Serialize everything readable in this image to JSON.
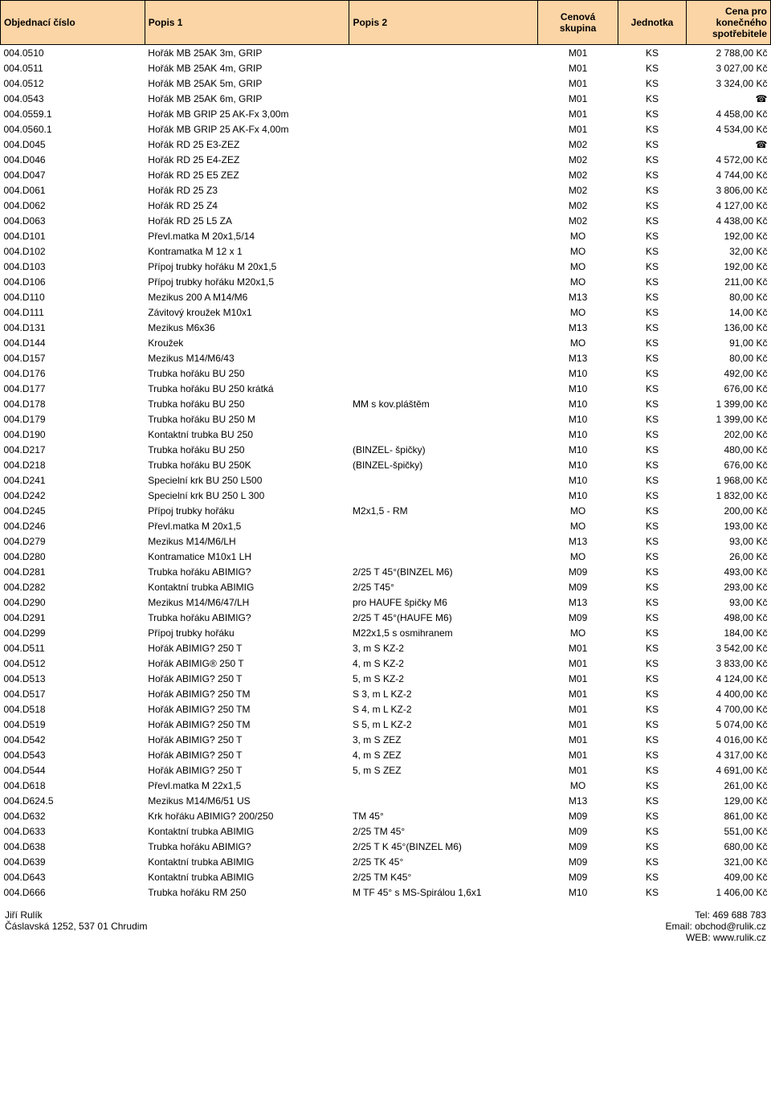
{
  "columns": [
    {
      "label": "Objednací číslo",
      "class": "col-obj",
      "align": "left"
    },
    {
      "label": "Popis 1",
      "class": "col-pop1",
      "align": "left"
    },
    {
      "label": "Popis 2",
      "class": "col-pop2",
      "align": "left"
    },
    {
      "label": "Cenová skupina",
      "class": "col-cenova",
      "align": "center"
    },
    {
      "label": "Jednotka",
      "class": "col-jednotka",
      "align": "center"
    },
    {
      "label": "Cena pro konečného spotřebitele",
      "class": "col-cena",
      "align": "right"
    }
  ],
  "rows": [
    [
      "004.0510",
      "Hořák MB 25AK 3m, GRIP",
      "",
      "M01",
      "KS",
      "2 788,00 Kč"
    ],
    [
      "004.0511",
      "Hořák MB 25AK 4m, GRIP",
      "",
      "M01",
      "KS",
      "3 027,00 Kč"
    ],
    [
      "004.0512",
      "Hořák MB 25AK 5m, GRIP",
      "",
      "M01",
      "KS",
      "3 324,00 Kč"
    ],
    [
      "004.0543",
      "Hořák MB 25AK 6m, GRIP",
      "",
      "M01",
      "KS",
      "☎"
    ],
    [
      "004.0559.1",
      "Hořák MB GRIP 25 AK-Fx 3,00m",
      "",
      "M01",
      "KS",
      "4 458,00 Kč"
    ],
    [
      "004.0560.1",
      "Hořák MB GRIP 25 AK-Fx 4,00m",
      "",
      "M01",
      "KS",
      "4 534,00 Kč"
    ],
    [
      "004.D045",
      "Hořák RD 25 E3-ZEZ",
      "",
      "M02",
      "KS",
      "☎"
    ],
    [
      "004.D046",
      "Hořák RD 25 E4-ZEZ",
      "",
      "M02",
      "KS",
      "4 572,00 Kč"
    ],
    [
      "004.D047",
      "Hořák RD 25 E5 ZEZ",
      "",
      "M02",
      "KS",
      "4 744,00 Kč"
    ],
    [
      "004.D061",
      "Hořák RD 25 Z3",
      "",
      "M02",
      "KS",
      "3 806,00 Kč"
    ],
    [
      "004.D062",
      "Hořák RD 25 Z4",
      "",
      "M02",
      "KS",
      "4 127,00 Kč"
    ],
    [
      "004.D063",
      "Hořák RD 25 L5 ZA",
      "",
      "M02",
      "KS",
      "4 438,00 Kč"
    ],
    [
      "004.D101",
      "Převl.matka M 20x1,5/14",
      "",
      "MO",
      "KS",
      "192,00 Kč"
    ],
    [
      "004.D102",
      "Kontramatka M 12 x 1",
      "",
      "MO",
      "KS",
      "32,00 Kč"
    ],
    [
      "004.D103",
      "Přípoj trubky hořáku M 20x1,5",
      "",
      "MO",
      "KS",
      "192,00 Kč"
    ],
    [
      "004.D106",
      "Přípoj trubky hořáku M20x1,5",
      "",
      "MO",
      "KS",
      "211,00 Kč"
    ],
    [
      "004.D110",
      "Mezikus 200 A M14/M6",
      "",
      "M13",
      "KS",
      "80,00 Kč"
    ],
    [
      "004.D111",
      "Závitový kroužek M10x1",
      "",
      "MO",
      "KS",
      "14,00 Kč"
    ],
    [
      "004.D131",
      "Mezikus M6x36",
      "",
      "M13",
      "KS",
      "136,00 Kč"
    ],
    [
      "004.D144",
      "Kroužek",
      "",
      "MO",
      "KS",
      "91,00 Kč"
    ],
    [
      "004.D157",
      "Mezikus M14/M6/43",
      "",
      "M13",
      "KS",
      "80,00 Kč"
    ],
    [
      "004.D176",
      "Trubka hořáku BU 250",
      "",
      "M10",
      "KS",
      "492,00 Kč"
    ],
    [
      "004.D177",
      "Trubka hořáku BU 250 krátká",
      "",
      "M10",
      "KS",
      "676,00 Kč"
    ],
    [
      "004.D178",
      "Trubka hořáku BU 250",
      "MM s kov.pláštěm",
      "M10",
      "KS",
      "1 399,00 Kč"
    ],
    [
      "004.D179",
      "Trubka hořáku BU 250 M",
      "",
      "M10",
      "KS",
      "1 399,00 Kč"
    ],
    [
      "004.D190",
      "Kontaktní trubka BU 250",
      "",
      "M10",
      "KS",
      "202,00 Kč"
    ],
    [
      "004.D217",
      "Trubka hořáku BU 250",
      "(BINZEL- špičky)",
      "M10",
      "KS",
      "480,00 Kč"
    ],
    [
      "004.D218",
      "Trubka hořáku BU 250K",
      "(BINZEL-špičky)",
      "M10",
      "KS",
      "676,00 Kč"
    ],
    [
      "004.D241",
      "Specielní krk BU 250 L500",
      "",
      "M10",
      "KS",
      "1 968,00 Kč"
    ],
    [
      "004.D242",
      "Specielní krk BU 250 L 300",
      "",
      "M10",
      "KS",
      "1 832,00 Kč"
    ],
    [
      "004.D245",
      "Přípoj trubky hořáku",
      "M2x1,5 - RM",
      "MO",
      "KS",
      "200,00 Kč"
    ],
    [
      "004.D246",
      "Převl.matka M 20x1,5",
      "",
      "MO",
      "KS",
      "193,00 Kč"
    ],
    [
      "004.D279",
      "Mezikus M14/M6/LH",
      "",
      "M13",
      "KS",
      "93,00 Kč"
    ],
    [
      "004.D280",
      "Kontramatice M10x1 LH",
      "",
      "MO",
      "KS",
      "26,00 Kč"
    ],
    [
      "004.D281",
      "Trubka hořáku ABIMIG?",
      "2/25 T 45°(BINZEL M6)",
      "M09",
      "KS",
      "493,00 Kč"
    ],
    [
      "004.D282",
      "Kontaktní trubka  ABIMIG",
      "2/25 T45°",
      "M09",
      "KS",
      "293,00 Kč"
    ],
    [
      "004.D290",
      "Mezikus M14/M6/47/LH",
      "pro HAUFE špičky M6",
      "M13",
      "KS",
      "93,00 Kč"
    ],
    [
      "004.D291",
      "Trubka hořáku ABIMIG?",
      "2/25 T 45°(HAUFE M6)",
      "M09",
      "KS",
      "498,00 Kč"
    ],
    [
      "004.D299",
      "Přípoj trubky hořáku",
      "M22x1,5 s osmihranem",
      "MO",
      "KS",
      "184,00 Kč"
    ],
    [
      "004.D511",
      "Hořák ABIMIG? 250 T",
      "3, m S KZ-2",
      "M01",
      "KS",
      "3 542,00 Kč"
    ],
    [
      "004.D512",
      "Hořák ABIMIG® 250 T",
      "4, m S KZ-2",
      "M01",
      "KS",
      "3 833,00 Kč"
    ],
    [
      "004.D513",
      "Hořák ABIMIG? 250 T",
      "5, m S KZ-2",
      "M01",
      "KS",
      "4 124,00 Kč"
    ],
    [
      "004.D517",
      "Hořák ABIMIG? 250 TM",
      "S 3, m L KZ-2",
      "M01",
      "KS",
      "4 400,00 Kč"
    ],
    [
      "004.D518",
      "Hořák ABIMIG? 250 TM",
      "S 4, m L KZ-2",
      "M01",
      "KS",
      "4 700,00 Kč"
    ],
    [
      "004.D519",
      "Hořák ABIMIG? 250 TM",
      "S 5, m L KZ-2",
      "M01",
      "KS",
      "5 074,00 Kč"
    ],
    [
      "004.D542",
      "Hořák ABIMIG? 250 T",
      "3, m S ZEZ",
      "M01",
      "KS",
      "4 016,00 Kč"
    ],
    [
      "004.D543",
      "Hořák ABIMIG? 250 T",
      "4, m S ZEZ",
      "M01",
      "KS",
      "4 317,00 Kč"
    ],
    [
      "004.D544",
      "Hořák ABIMIG? 250 T",
      "5, m S ZEZ",
      "M01",
      "KS",
      "4 691,00 Kč"
    ],
    [
      "004.D618",
      "Převl.matka M 22x1,5",
      "",
      "MO",
      "KS",
      "261,00 Kč"
    ],
    [
      "004.D624.5",
      "Mezikus M14/M6/51 US",
      "",
      "M13",
      "KS",
      "129,00 Kč"
    ],
    [
      "004.D632",
      "Krk hořáku ABIMIG? 200/250",
      "TM 45°",
      "M09",
      "KS",
      "861,00 Kč"
    ],
    [
      "004.D633",
      "Kontaktní trubka  ABIMIG",
      "2/25 TM 45°",
      "M09",
      "KS",
      "551,00 Kč"
    ],
    [
      "004.D638",
      "Trubka hořáku ABIMIG?",
      "2/25 T K 45°(BINZEL M6)",
      "M09",
      "KS",
      "680,00 Kč"
    ],
    [
      "004.D639",
      "Kontaktní trubka  ABIMIG",
      "2/25 TK 45°",
      "M09",
      "KS",
      "321,00 Kč"
    ],
    [
      "004.D643",
      "Kontaktní trubka  ABIMIG",
      "2/25 TM K45°",
      "M09",
      "KS",
      "409,00 Kč"
    ],
    [
      "004.D666",
      "Trubka hořáku RM 250",
      "M TF 45° s MS-Spirálou 1,6x1",
      "M10",
      "KS",
      "1 406,00 Kč"
    ]
  ],
  "footer": {
    "left_line1": "Jiří Rulík",
    "left_line2": "Čáslavská 1252, 537 01 Chrudim",
    "right_line1": "Tel: 469 688 783",
    "right_line2": "Email: obchod@rulik.cz",
    "right_line3": "WEB: www.rulik.cz"
  }
}
